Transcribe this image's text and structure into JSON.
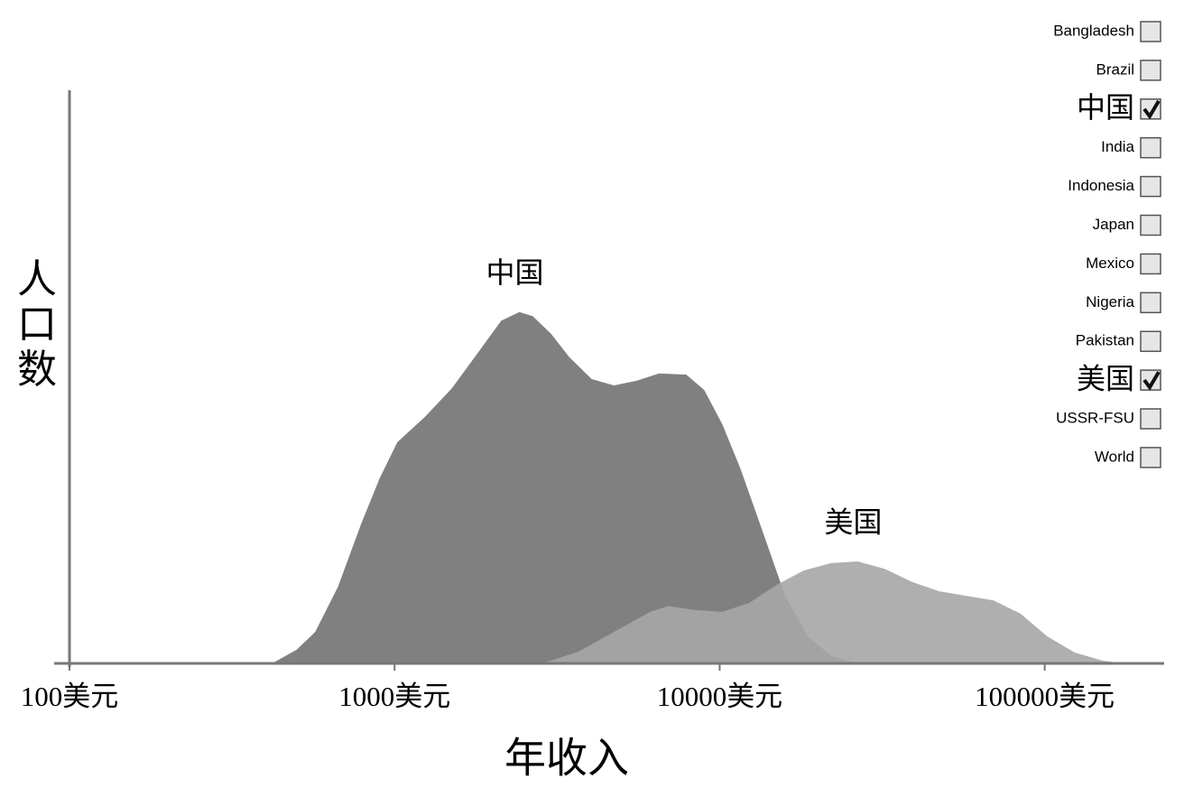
{
  "chart_data": {
    "type": "area",
    "x_label": "年收入",
    "y_label": "人口数",
    "xscale": "log",
    "xlim": [
      100,
      233000
    ],
    "ylim": [
      0,
      100
    ],
    "xticks": [
      {
        "value": 100,
        "label": "100美元"
      },
      {
        "value": 1000,
        "label": "1000美元"
      },
      {
        "value": 10000,
        "label": "10000美元"
      },
      {
        "value": 100000,
        "label": "100000美元"
      }
    ],
    "series": [
      {
        "name": "中国",
        "color": "#808080",
        "x": [
          420,
          500,
          570,
          670,
          790,
          900,
          1020,
          1240,
          1500,
          1810,
          2130,
          2420,
          2660,
          3030,
          3440,
          4040,
          4730,
          5550,
          6510,
          7890,
          8970,
          10200,
          11600,
          13600,
          15900,
          18700,
          22000,
          26600
        ],
        "values": [
          0,
          2.4,
          5.5,
          13.4,
          24.4,
          32.3,
          38.6,
          43,
          48,
          54.3,
          59.8,
          61.3,
          60.6,
          57.5,
          53.5,
          49.6,
          48.5,
          49.3,
          50.6,
          50.4,
          47.7,
          41.7,
          33.9,
          22.8,
          11.8,
          4.7,
          1.3,
          0
        ]
      },
      {
        "name": "美国",
        "color": "#a6a6a6",
        "x": [
          2840,
          3660,
          4730,
          6110,
          6950,
          8410,
          10200,
          12360,
          14960,
          18130,
          22000,
          26600,
          32200,
          39100,
          47300,
          57300,
          69500,
          84100,
          102000,
          123600,
          150000,
          175000
        ],
        "values": [
          0,
          2.0,
          5.5,
          9.0,
          10.0,
          9.3,
          9.0,
          10.6,
          13.7,
          16.2,
          17.5,
          17.8,
          16.5,
          14.2,
          12.6,
          11.8,
          11.0,
          8.7,
          4.7,
          1.9,
          0.5,
          0
        ]
      }
    ]
  },
  "controls": {
    "countries": [
      {
        "label": "Bangladesh",
        "checked": false
      },
      {
        "label": "Brazil",
        "checked": false
      },
      {
        "label": "中国",
        "checked": true
      },
      {
        "label": "India",
        "checked": false
      },
      {
        "label": "Indonesia",
        "checked": false
      },
      {
        "label": "Japan",
        "checked": false
      },
      {
        "label": "Mexico",
        "checked": false
      },
      {
        "label": "Nigeria",
        "checked": false
      },
      {
        "label": "Pakistan",
        "checked": false
      },
      {
        "label": "美国",
        "checked": true
      },
      {
        "label": "USSR-FSU",
        "checked": false
      },
      {
        "label": "World",
        "checked": false
      }
    ]
  }
}
